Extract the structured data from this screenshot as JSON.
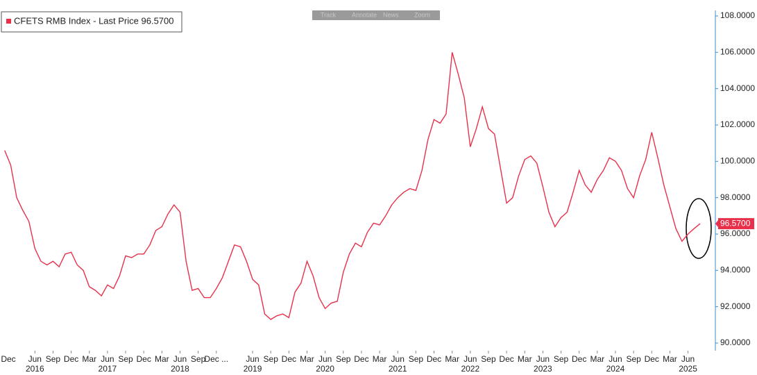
{
  "chart_data": {
    "type": "line",
    "x": [
      "2016-01",
      "2016-02",
      "2016-03",
      "2016-04",
      "2016-05",
      "2016-06",
      "2016-07",
      "2016-08",
      "2016-09",
      "2016-10",
      "2016-11",
      "2016-12",
      "2017-01",
      "2017-02",
      "2017-03",
      "2017-04",
      "2017-05",
      "2017-06",
      "2017-07",
      "2017-08",
      "2017-09",
      "2017-10",
      "2017-11",
      "2017-12",
      "2018-01",
      "2018-02",
      "2018-03",
      "2018-04",
      "2018-05",
      "2018-06",
      "2018-07",
      "2018-08",
      "2018-09",
      "2018-10",
      "2018-11",
      "2018-12",
      "2019-01",
      "2019-02",
      "2019-03",
      "2019-04",
      "2019-05",
      "2019-06",
      "2019-07",
      "2019-08",
      "2019-09",
      "2019-10",
      "2019-11",
      "2019-12",
      "2020-01",
      "2020-02",
      "2020-03",
      "2020-04",
      "2020-05",
      "2020-06",
      "2020-07",
      "2020-08",
      "2020-09",
      "2020-10",
      "2020-11",
      "2020-12",
      "2021-01",
      "2021-02",
      "2021-03",
      "2021-04",
      "2021-05",
      "2021-06",
      "2021-07",
      "2021-08",
      "2021-09",
      "2021-10",
      "2021-11",
      "2021-12",
      "2022-01",
      "2022-02",
      "2022-03",
      "2022-04",
      "2022-05",
      "2022-06",
      "2022-07",
      "2022-08",
      "2022-09",
      "2022-10",
      "2022-11",
      "2022-12",
      "2023-01",
      "2023-02",
      "2023-03",
      "2023-04",
      "2023-05",
      "2023-06",
      "2023-07",
      "2023-08",
      "2023-09",
      "2023-10",
      "2023-11",
      "2023-12",
      "2024-01",
      "2024-02",
      "2024-03",
      "2024-04",
      "2024-05",
      "2024-06",
      "2024-07",
      "2024-08",
      "2024-09",
      "2024-10",
      "2024-11",
      "2024-12",
      "2025-01",
      "2025-02",
      "2025-03",
      "2025-04",
      "2025-05",
      "2025-06",
      "2025-07",
      "2025-08"
    ],
    "series": [
      {
        "name": "CFETS RMB Index - Last Price 96.5700",
        "color": "#e8304a",
        "values": [
          100.6,
          99.8,
          98.0,
          97.3,
          96.7,
          95.2,
          94.5,
          94.3,
          94.5,
          94.2,
          94.9,
          95.0,
          94.3,
          94.0,
          93.1,
          92.9,
          92.6,
          93.2,
          93.0,
          93.7,
          94.8,
          94.7,
          94.9,
          94.9,
          95.4,
          96.2,
          96.4,
          97.1,
          97.6,
          97.2,
          94.5,
          92.9,
          93.0,
          92.5,
          92.5,
          93.0,
          93.6,
          94.5,
          95.4,
          95.3,
          94.5,
          93.5,
          93.2,
          91.6,
          91.3,
          91.5,
          91.6,
          91.4,
          92.8,
          93.3,
          94.5,
          93.7,
          92.5,
          91.9,
          92.2,
          92.3,
          93.9,
          94.9,
          95.5,
          95.3,
          96.1,
          96.6,
          96.5,
          97.0,
          97.6,
          98.0,
          98.3,
          98.5,
          98.4,
          99.5,
          101.2,
          102.3,
          102.1,
          102.6,
          106.0,
          104.8,
          103.5,
          100.8,
          101.8,
          103.0,
          101.8,
          101.5,
          99.6,
          97.7,
          98.0,
          99.2,
          100.1,
          100.3,
          99.9,
          98.6,
          97.2,
          96.4,
          96.9,
          97.2,
          98.3,
          99.5,
          98.7,
          98.3,
          99.0,
          99.5,
          100.2,
          100.0,
          99.5,
          98.5,
          98.0,
          99.2,
          100.1,
          101.6,
          100.2,
          98.7,
          97.5,
          96.3,
          95.6,
          96.0,
          96.3,
          96.57
        ]
      }
    ],
    "last_label": "96.5700",
    "xlim": [
      "2015-12",
      "2025-08"
    ],
    "xticks": [
      {
        "value": "2015-12",
        "label": "Dec"
      },
      {
        "value": "2016-06",
        "label": "Jun"
      },
      {
        "value": "2016-09",
        "label": "Sep"
      },
      {
        "value": "2016-12",
        "label": "Dec"
      },
      {
        "value": "2017-03",
        "label": "Mar"
      },
      {
        "value": "2017-06",
        "label": "Jun"
      },
      {
        "value": "2017-09",
        "label": "Sep"
      },
      {
        "value": "2017-12",
        "label": "Dec"
      },
      {
        "value": "2018-03",
        "label": "Mar"
      },
      {
        "value": "2018-06",
        "label": "Jun"
      },
      {
        "value": "2018-09",
        "label": "Sep"
      },
      {
        "value": "2018-12",
        "label": "Dec ..."
      },
      {
        "value": "2019-06",
        "label": "Jun"
      },
      {
        "value": "2019-09",
        "label": "Sep"
      },
      {
        "value": "2019-12",
        "label": "Dec"
      },
      {
        "value": "2020-03",
        "label": "Mar"
      },
      {
        "value": "2020-06",
        "label": "Jun"
      },
      {
        "value": "2020-09",
        "label": "Sep"
      },
      {
        "value": "2020-12",
        "label": "Dec"
      },
      {
        "value": "2021-03",
        "label": "Mar"
      },
      {
        "value": "2021-06",
        "label": "Jun"
      },
      {
        "value": "2021-09",
        "label": "Sep"
      },
      {
        "value": "2021-12",
        "label": "Dec"
      },
      {
        "value": "2022-03",
        "label": "Mar"
      },
      {
        "value": "2022-06",
        "label": "Jun"
      },
      {
        "value": "2022-09",
        "label": "Sep"
      },
      {
        "value": "2022-12",
        "label": "Dec"
      },
      {
        "value": "2023-03",
        "label": "Mar"
      },
      {
        "value": "2023-06",
        "label": "Jun"
      },
      {
        "value": "2023-09",
        "label": "Sep"
      },
      {
        "value": "2023-12",
        "label": "Dec"
      },
      {
        "value": "2024-03",
        "label": "Mar"
      },
      {
        "value": "2024-06",
        "label": "Jun"
      },
      {
        "value": "2024-09",
        "label": "Sep"
      },
      {
        "value": "2024-12",
        "label": "Dec"
      },
      {
        "value": "2025-03",
        "label": "Mar"
      },
      {
        "value": "2025-06",
        "label": "Jun"
      }
    ],
    "xyears": [
      {
        "value": "2016-06",
        "label": "2016"
      },
      {
        "value": "2017-06",
        "label": "2017"
      },
      {
        "value": "2018-06",
        "label": "2018"
      },
      {
        "value": "2019-06",
        "label": "2019"
      },
      {
        "value": "2020-06",
        "label": "2020"
      },
      {
        "value": "2021-06",
        "label": "2021"
      },
      {
        "value": "2022-06",
        "label": "2022"
      },
      {
        "value": "2023-06",
        "label": "2023"
      },
      {
        "value": "2024-06",
        "label": "2024"
      },
      {
        "value": "2025-06",
        "label": "2025"
      }
    ],
    "ylim": [
      90,
      108
    ],
    "yticks": [
      {
        "value": 90,
        "label": "90.0000"
      },
      {
        "value": 92,
        "label": "92.0000"
      },
      {
        "value": 94,
        "label": "94.0000"
      },
      {
        "value": 96,
        "label": "96.0000"
      },
      {
        "value": 98,
        "label": "98.0000"
      },
      {
        "value": 100,
        "label": "100.0000"
      },
      {
        "value": 102,
        "label": "102.0000"
      },
      {
        "value": 104,
        "label": "104.0000"
      },
      {
        "value": 106,
        "label": "106.0000"
      },
      {
        "value": 108,
        "label": "108.0000"
      }
    ],
    "toolbar": [
      "Track",
      "Annotate",
      "News",
      "Zoom"
    ]
  }
}
